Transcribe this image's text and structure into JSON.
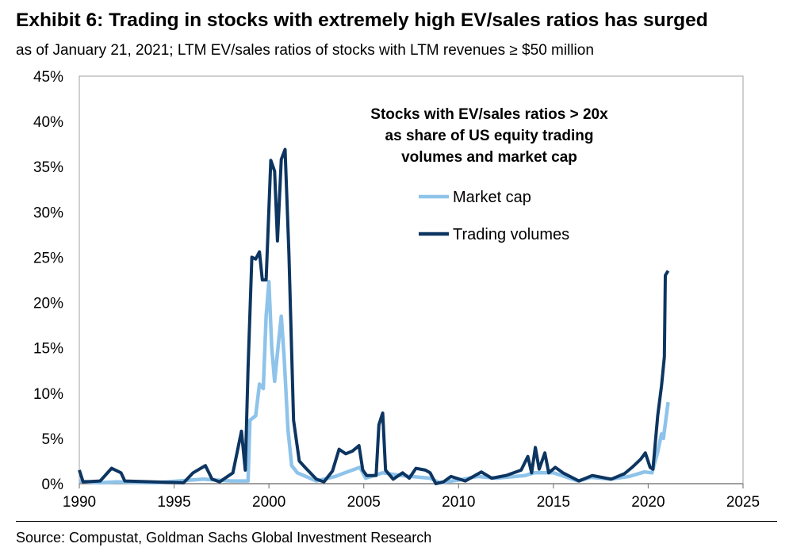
{
  "title": "Exhibit 6: Trading in stocks with extremely high EV/sales ratios has surged",
  "subtitle": "as of January 21, 2021; LTM EV/sales ratios of stocks with LTM revenues ≥ $50 million",
  "source": "Source: Compustat, Goldman Sachs Global Investment Research",
  "chart_data": {
    "type": "line",
    "title": "",
    "annotation": [
      "Stocks with EV/sales ratios > 20x",
      "as share of US equity trading",
      "volumes and market cap"
    ],
    "xlabel": "",
    "ylabel": "",
    "xlim": [
      1990,
      2025
    ],
    "ylim": [
      0,
      45
    ],
    "x_ticks": [
      "1990",
      "1995",
      "2000",
      "2005",
      "2010",
      "2015",
      "2020",
      "2025"
    ],
    "y_ticks": [
      "0%",
      "5%",
      "10%",
      "15%",
      "20%",
      "25%",
      "30%",
      "35%",
      "40%",
      "45%"
    ],
    "grid": false,
    "legend_placement": "upper-right inside",
    "series": [
      {
        "name": "Market cap",
        "color": "#8ec3ea",
        "points": [
          [
            1990,
            0.3
          ],
          [
            1991,
            0.1
          ],
          [
            1992,
            0.2
          ],
          [
            1994,
            0.1
          ],
          [
            1996.5,
            0.5
          ],
          [
            1998,
            0.3
          ],
          [
            1998.9,
            0.3
          ],
          [
            1999.0,
            7
          ],
          [
            1999.3,
            7.5
          ],
          [
            1999.5,
            11
          ],
          [
            1999.7,
            10.5
          ],
          [
            1999.85,
            18.5
          ],
          [
            2000.0,
            22.3
          ],
          [
            2000.15,
            15
          ],
          [
            2000.3,
            11.3
          ],
          [
            2000.5,
            15.5
          ],
          [
            2000.65,
            18.5
          ],
          [
            2000.8,
            14
          ],
          [
            2001.0,
            6
          ],
          [
            2001.2,
            2
          ],
          [
            2001.5,
            1.2
          ],
          [
            2002.5,
            0.3
          ],
          [
            2003.5,
            0.8
          ],
          [
            2004,
            1.2
          ],
          [
            2004.8,
            1.8
          ],
          [
            2005.1,
            0.6
          ],
          [
            2006,
            1.2
          ],
          [
            2007,
            0.9
          ],
          [
            2008.5,
            0.6
          ],
          [
            2009,
            0.1
          ],
          [
            2010,
            0.4
          ],
          [
            2011,
            0.8
          ],
          [
            2012,
            0.6
          ],
          [
            2013.5,
            0.9
          ],
          [
            2014,
            1.2
          ],
          [
            2015,
            1.2
          ],
          [
            2016.3,
            0.3
          ],
          [
            2017,
            0.7
          ],
          [
            2018,
            0.5
          ],
          [
            2019,
            0.8
          ],
          [
            2019.8,
            1.3
          ],
          [
            2020.2,
            1.2
          ],
          [
            2020.5,
            3.5
          ],
          [
            2020.7,
            5.5
          ],
          [
            2020.8,
            5
          ],
          [
            2021.05,
            9
          ]
        ]
      },
      {
        "name": "Trading volumes",
        "color": "#0d3561",
        "points": [
          [
            1990,
            1.5
          ],
          [
            1990.2,
            0.2
          ],
          [
            1991.1,
            0.3
          ],
          [
            1991.7,
            1.7
          ],
          [
            1992.2,
            1.2
          ],
          [
            1992.4,
            0.3
          ],
          [
            1995.5,
            0.1
          ],
          [
            1996.0,
            1.2
          ],
          [
            1996.65,
            2.0
          ],
          [
            1997.0,
            0.5
          ],
          [
            1997.4,
            0.2
          ],
          [
            1998.1,
            1.2
          ],
          [
            1998.55,
            5.8
          ],
          [
            1998.75,
            1.5
          ],
          [
            1998.9,
            12.7
          ],
          [
            1999.1,
            25
          ],
          [
            1999.3,
            24.8
          ],
          [
            1999.5,
            25.6
          ],
          [
            1999.65,
            22.5
          ],
          [
            1999.85,
            22.5
          ],
          [
            2000.1,
            35.7
          ],
          [
            2000.3,
            34.5
          ],
          [
            2000.45,
            26.8
          ],
          [
            2000.65,
            35.8
          ],
          [
            2000.85,
            36.9
          ],
          [
            2001.05,
            25.5
          ],
          [
            2001.3,
            7
          ],
          [
            2001.4,
            5.5
          ],
          [
            2001.6,
            2.5
          ],
          [
            2001.9,
            1.8
          ],
          [
            2002.5,
            0.5
          ],
          [
            2002.9,
            0.2
          ],
          [
            2003.35,
            1.4
          ],
          [
            2003.7,
            3.8
          ],
          [
            2004.05,
            3.3
          ],
          [
            2004.4,
            3.6
          ],
          [
            2004.75,
            4.2
          ],
          [
            2004.95,
            1.5
          ],
          [
            2005.15,
            0.9
          ],
          [
            2005.65,
            0.9
          ],
          [
            2005.8,
            6.5
          ],
          [
            2006.0,
            7.8
          ],
          [
            2006.15,
            1.5
          ],
          [
            2006.55,
            0.5
          ],
          [
            2007.05,
            1.2
          ],
          [
            2007.4,
            0.6
          ],
          [
            2007.75,
            1.7
          ],
          [
            2008.25,
            1.5
          ],
          [
            2008.5,
            1.2
          ],
          [
            2008.8,
            0
          ],
          [
            2009.2,
            0.2
          ],
          [
            2009.6,
            0.8
          ],
          [
            2010.35,
            0.3
          ],
          [
            2011.2,
            1.3
          ],
          [
            2011.75,
            0.6
          ],
          [
            2012.5,
            0.9
          ],
          [
            2013.3,
            1.5
          ],
          [
            2013.65,
            3.0
          ],
          [
            2013.85,
            1.2
          ],
          [
            2014.05,
            4.0
          ],
          [
            2014.25,
            1.6
          ],
          [
            2014.55,
            3.4
          ],
          [
            2014.75,
            1.2
          ],
          [
            2015.1,
            1.8
          ],
          [
            2015.5,
            1.2
          ],
          [
            2016.35,
            0.3
          ],
          [
            2017.05,
            0.9
          ],
          [
            2018.05,
            0.5
          ],
          [
            2018.75,
            1.1
          ],
          [
            2019.15,
            1.8
          ],
          [
            2019.6,
            2.7
          ],
          [
            2019.85,
            3.4
          ],
          [
            2020.1,
            1.8
          ],
          [
            2020.25,
            1.6
          ],
          [
            2020.5,
            7.5
          ],
          [
            2020.7,
            10.8
          ],
          [
            2020.85,
            14
          ],
          [
            2020.9,
            23
          ],
          [
            2021.05,
            23.5
          ]
        ]
      }
    ]
  }
}
